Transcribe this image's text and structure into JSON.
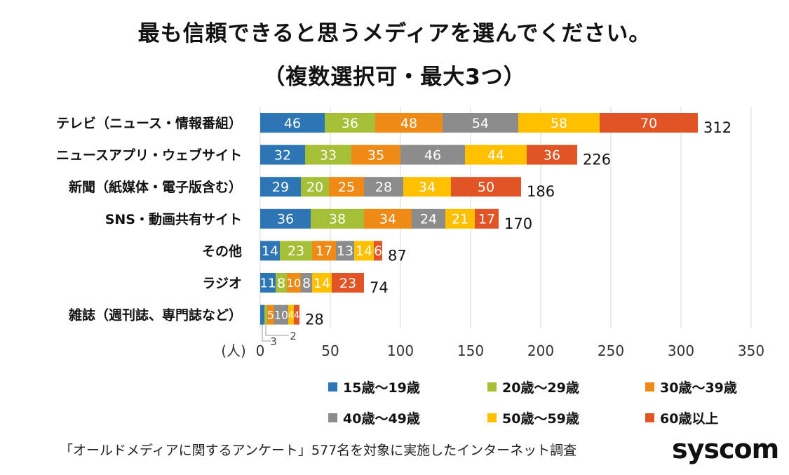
{
  "title_line1": "最も信頼できると思うメディアを選んでください。",
  "title_line2": "（複数選択可・最大3つ）",
  "chart_data": {
    "type": "bar",
    "orientation": "horizontal",
    "stacked": true,
    "categories": [
      "テレビ（ニュース・情報番組）",
      "ニュースアプリ・ウェブサイト",
      "新聞（紙媒体・電子版含む）",
      "SNS・動画共有サイト",
      "その他",
      "ラジオ",
      "雑誌（週刊誌、専門誌など）"
    ],
    "series": [
      {
        "name": "15歳〜19歳",
        "color": "#2E75B6",
        "values": [
          46,
          32,
          29,
          36,
          14,
          11,
          3
        ]
      },
      {
        "name": "20歳〜29歳",
        "color": "#A5BF37",
        "values": [
          36,
          33,
          20,
          38,
          23,
          8,
          2
        ]
      },
      {
        "name": "30歳〜39歳",
        "color": "#F08A17",
        "values": [
          48,
          35,
          25,
          34,
          17,
          10,
          5
        ]
      },
      {
        "name": "40歳〜49歳",
        "color": "#8C8C8C",
        "values": [
          54,
          46,
          28,
          24,
          13,
          8,
          10
        ]
      },
      {
        "name": "50歳〜59歳",
        "color": "#FFC000",
        "values": [
          58,
          44,
          34,
          21,
          14,
          14,
          4
        ]
      },
      {
        "name": "60歳以上",
        "color": "#E05426",
        "values": [
          70,
          36,
          50,
          17,
          6,
          23,
          4
        ]
      }
    ],
    "totals": [
      312,
      226,
      186,
      170,
      87,
      74,
      28
    ],
    "x_ticks": [
      0,
      50,
      100,
      150,
      200,
      250,
      300,
      350
    ],
    "xlim": [
      0,
      350
    ],
    "xlabel": "(人)",
    "grid": true,
    "legend_position": "bottom",
    "callouts": [
      {
        "category_index": 6,
        "series_index": 0,
        "label": "3"
      },
      {
        "category_index": 6,
        "series_index": 1,
        "label": "2"
      }
    ]
  },
  "footnote": "「オールドメディアに関するアンケート」577名を対象に実施したインターネット調査",
  "brand": "syscom"
}
